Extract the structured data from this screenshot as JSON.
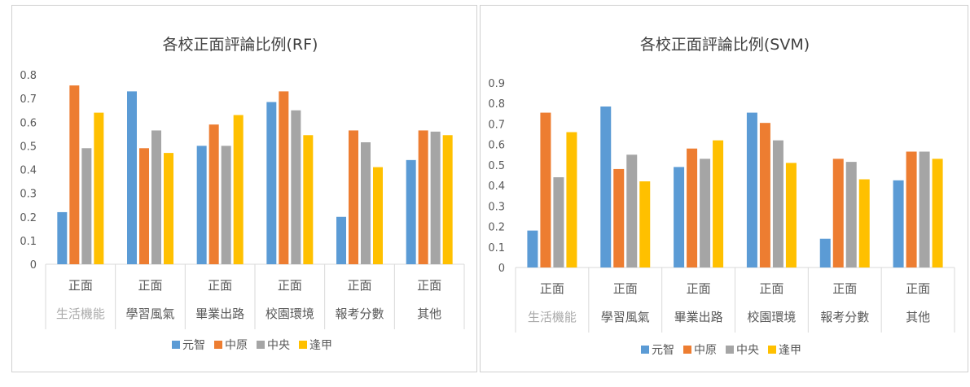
{
  "colors": {
    "series": [
      "#5b9bd5",
      "#ed7d31",
      "#a5a5a5",
      "#ffc000"
    ],
    "axis_text": "#595959",
    "category_top_text": "#595959",
    "category_faded_text": "#aaaaaa",
    "grid": "#d9d9d9"
  },
  "chart_data": [
    {
      "type": "bar",
      "title": "各校正面評論比例(RF)",
      "xlabel": "",
      "ylabel": "",
      "ylim": [
        0,
        0.8
      ],
      "yticks": [
        "0",
        "0.1",
        "0.2",
        "0.3",
        "0.4",
        "0.5",
        "0.6",
        "0.7",
        "0.8"
      ],
      "category_top_labels": [
        "正面",
        "正面",
        "正面",
        "正面",
        "正面",
        "正面"
      ],
      "categories": [
        "生活機能",
        "學習風氣",
        "畢業出路",
        "校園環境",
        "報考分數",
        "其他"
      ],
      "series": [
        {
          "name": "元智",
          "values": [
            0.22,
            0.73,
            0.5,
            0.685,
            0.2,
            0.44
          ]
        },
        {
          "name": "中原",
          "values": [
            0.755,
            0.49,
            0.59,
            0.73,
            0.565,
            0.565
          ]
        },
        {
          "name": "中央",
          "values": [
            0.49,
            0.565,
            0.5,
            0.65,
            0.515,
            0.56
          ]
        },
        {
          "name": "逢甲",
          "values": [
            0.64,
            0.47,
            0.63,
            0.545,
            0.41,
            0.545
          ]
        }
      ],
      "grid": false,
      "legend": "bottom"
    },
    {
      "type": "bar",
      "title": "各校正面評論比例(SVM)",
      "xlabel": "",
      "ylabel": "",
      "ylim": [
        0,
        0.9
      ],
      "yticks": [
        "0",
        "0.1",
        "0.2",
        "0.3",
        "0.4",
        "0.5",
        "0.6",
        "0.7",
        "0.8",
        "0.9"
      ],
      "category_top_labels": [
        "正面",
        "正面",
        "正面",
        "正面",
        "正面",
        "正面"
      ],
      "categories": [
        "生活機能",
        "學習風氣",
        "畢業出路",
        "校園環境",
        "報考分數",
        "其他"
      ],
      "series": [
        {
          "name": "元智",
          "values": [
            0.18,
            0.785,
            0.49,
            0.755,
            0.14,
            0.425
          ]
        },
        {
          "name": "中原",
          "values": [
            0.755,
            0.48,
            0.58,
            0.705,
            0.53,
            0.565
          ]
        },
        {
          "name": "中央",
          "values": [
            0.44,
            0.55,
            0.53,
            0.62,
            0.515,
            0.565
          ]
        },
        {
          "name": "逢甲",
          "values": [
            0.66,
            0.42,
            0.62,
            0.51,
            0.43,
            0.53
          ]
        }
      ],
      "grid": false,
      "legend": "bottom"
    }
  ]
}
